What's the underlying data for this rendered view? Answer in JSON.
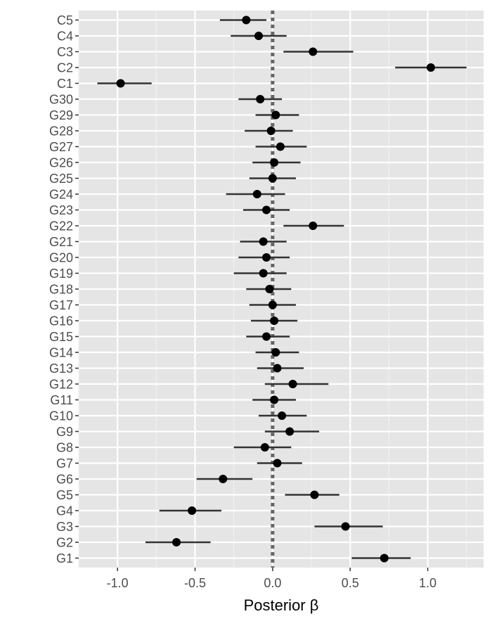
{
  "chart_data": {
    "type": "scatter",
    "subtype": "forest-plot-point-range",
    "title": "",
    "xlabel": "Posterior  β",
    "ylabel": "",
    "xlim": [
      -1.25,
      1.36
    ],
    "xticks": [
      -1.0,
      -0.5,
      0.0,
      0.5,
      1.0
    ],
    "xtick_labels": [
      "-1.0",
      "-0.5",
      "0.0",
      "0.5",
      "1.0"
    ],
    "reference_line": {
      "x": 0,
      "style": "dotted",
      "color": "#666666"
    },
    "grid": true,
    "background": "#e5e5e5",
    "point_color": "#000000",
    "interval_color": "#333333",
    "categories": [
      "C5",
      "C4",
      "C3",
      "C2",
      "C1",
      "G30",
      "G29",
      "G28",
      "G27",
      "G26",
      "G25",
      "G24",
      "G23",
      "G22",
      "G21",
      "G20",
      "G19",
      "G18",
      "G17",
      "G16",
      "G15",
      "G14",
      "G13",
      "G12",
      "G11",
      "G10",
      "G9",
      "G8",
      "G7",
      "G6",
      "G5",
      "G4",
      "G3",
      "G2",
      "G1"
    ],
    "estimate": [
      -0.17,
      -0.09,
      0.26,
      1.02,
      -0.98,
      -0.08,
      0.02,
      -0.01,
      0.05,
      0.01,
      0.0,
      -0.1,
      -0.04,
      0.26,
      -0.06,
      -0.04,
      -0.06,
      -0.02,
      0.0,
      0.01,
      -0.04,
      0.02,
      0.03,
      0.13,
      0.01,
      0.06,
      0.11,
      -0.05,
      0.03,
      -0.32,
      0.27,
      -0.52,
      0.47,
      -0.62,
      0.72
    ],
    "lower": [
      -0.34,
      -0.27,
      0.07,
      0.79,
      -1.13,
      -0.22,
      -0.11,
      -0.18,
      -0.11,
      -0.13,
      -0.15,
      -0.3,
      -0.19,
      0.07,
      -0.21,
      -0.22,
      -0.25,
      -0.17,
      -0.15,
      -0.14,
      -0.17,
      -0.11,
      -0.1,
      -0.05,
      -0.13,
      -0.09,
      -0.05,
      -0.25,
      -0.1,
      -0.49,
      0.08,
      -0.73,
      0.27,
      -0.82,
      0.51
    ],
    "upper": [
      -0.04,
      0.09,
      0.52,
      1.25,
      -0.78,
      0.06,
      0.17,
      0.13,
      0.22,
      0.18,
      0.15,
      0.08,
      0.11,
      0.46,
      0.09,
      0.11,
      0.09,
      0.12,
      0.15,
      0.16,
      0.11,
      0.17,
      0.2,
      0.36,
      0.15,
      0.22,
      0.3,
      0.12,
      0.19,
      -0.13,
      0.43,
      -0.33,
      0.71,
      -0.4,
      0.89
    ]
  }
}
